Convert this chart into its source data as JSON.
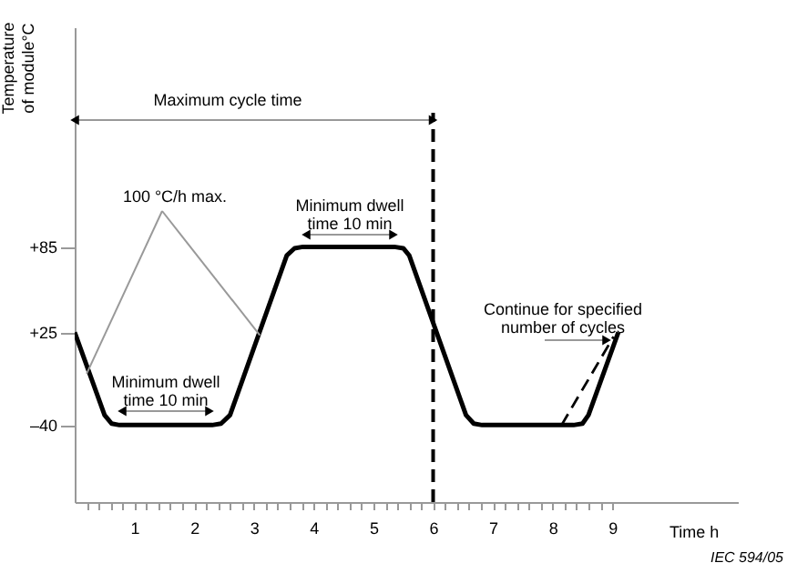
{
  "chart_data": {
    "type": "line",
    "xlabel": "Time  h",
    "ylabel": "Temperature\nof module°C",
    "xlim": [
      0,
      11.1
    ],
    "ylim": [
      -94,
      239
    ],
    "xticks": [
      {
        "value": 0.2,
        "label": null
      },
      {
        "value": 0.4,
        "label": null
      },
      {
        "value": 0.6,
        "label": null
      },
      {
        "value": 0.8,
        "label": null
      },
      1,
      {
        "value": 1.2,
        "label": null
      },
      {
        "value": 1.4,
        "label": null
      },
      {
        "value": 1.6,
        "label": null
      },
      {
        "value": 1.8,
        "label": null
      },
      2,
      {
        "value": 2.2,
        "label": null
      },
      {
        "value": 2.4,
        "label": null
      },
      {
        "value": 2.6,
        "label": null
      },
      {
        "value": 2.8,
        "label": null
      },
      3,
      {
        "value": 3.2,
        "label": null
      },
      {
        "value": 3.4,
        "label": null
      },
      {
        "value": 3.6,
        "label": null
      },
      {
        "value": 3.8,
        "label": null
      },
      4,
      {
        "value": 4.2,
        "label": null
      },
      {
        "value": 4.4,
        "label": null
      },
      {
        "value": 4.6,
        "label": null
      },
      {
        "value": 4.8,
        "label": null
      },
      5,
      {
        "value": 5.2,
        "label": null
      },
      {
        "value": 5.4,
        "label": null
      },
      {
        "value": 5.6,
        "label": null
      },
      {
        "value": 5.8,
        "label": null
      },
      6,
      {
        "value": 6.2,
        "label": null
      },
      {
        "value": 6.4,
        "label": null
      },
      {
        "value": 6.6,
        "label": null
      },
      {
        "value": 6.8,
        "label": null
      },
      7,
      {
        "value": 7.2,
        "label": null
      },
      {
        "value": 7.4,
        "label": null
      },
      {
        "value": 7.6,
        "label": null
      },
      {
        "value": 7.8,
        "label": null
      },
      8,
      {
        "value": 8.2,
        "label": null
      },
      {
        "value": 8.4,
        "label": null
      },
      {
        "value": 8.6,
        "label": null
      },
      {
        "value": 8.8,
        "label": null
      },
      9
    ],
    "yticks": [
      {
        "value": -40,
        "label": "–40"
      },
      {
        "value": 25,
        "label": "+25"
      },
      {
        "value": 85,
        "label": "+85"
      }
    ],
    "series": [
      {
        "color": "#000000",
        "line_style": "solid",
        "x": [
          0,
          0.5,
          0.62,
          0.75,
          2.3,
          2.45,
          2.6,
          3.55,
          3.68,
          3.82,
          5.35,
          5.5,
          5.6,
          6.55,
          6.68,
          6.82,
          8.35,
          8.5,
          8.6,
          9.1
        ],
        "values": [
          25,
          -33,
          -39,
          -40,
          -40,
          -39,
          -33,
          79,
          84,
          85,
          85,
          84,
          79,
          -33,
          -39,
          -40,
          -40,
          -39,
          -33,
          25
        ]
      },
      {
        "color": "#000000",
        "line_style": "dashed",
        "x": [
          8.15,
          9.02
        ],
        "values": [
          -40,
          22
        ]
      }
    ],
    "ref_lines": [
      {
        "axis": "x",
        "value": 6,
        "line_style": "dashed",
        "color": "#000000"
      }
    ],
    "annotations": [
      "Maximum cycle time",
      {
        "text": "100 °C/h max.",
        "x": 3.1,
        "y": 23
      },
      "Minimum dwell\ntime 10 min",
      "Minimum dwell\ntime 10 min",
      "Continue for specified\nnumber of cycles",
      "IEC  594/05"
    ],
    "grid": false,
    "marker": "none"
  }
}
